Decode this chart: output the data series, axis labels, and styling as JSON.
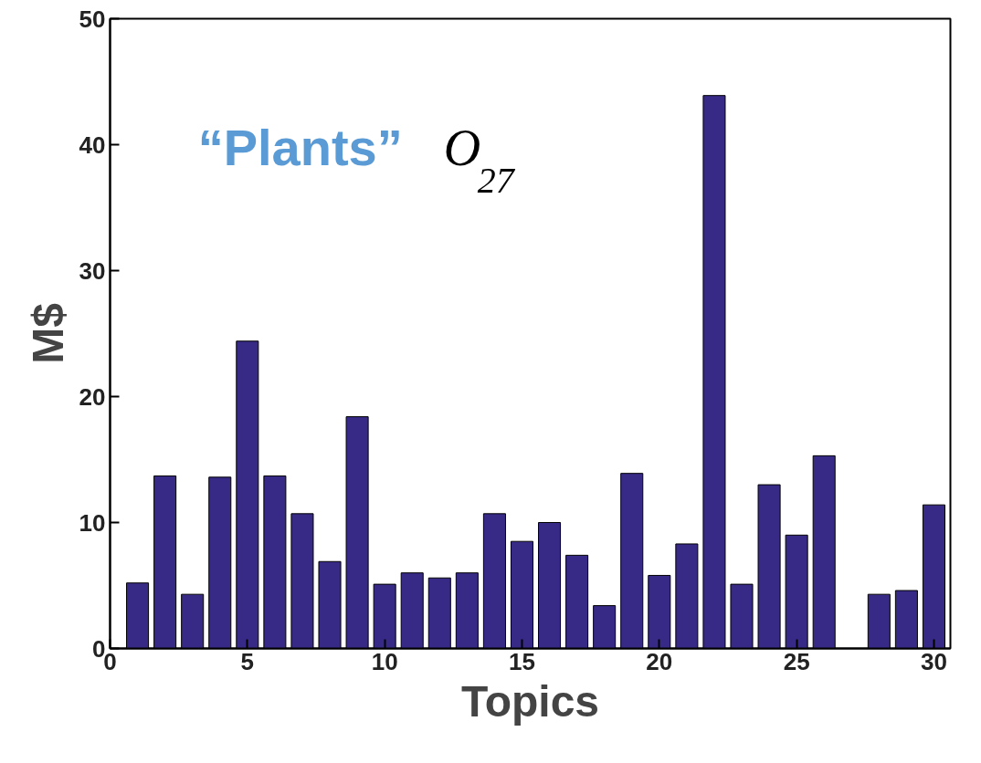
{
  "chart_data": {
    "type": "bar",
    "xlabel": "Topics",
    "ylabel": "M$",
    "annotations": [
      "“Plants”",
      "O$_{27}$"
    ],
    "x": [
      1,
      2,
      3,
      4,
      5,
      6,
      7,
      8,
      9,
      10,
      11,
      12,
      13,
      14,
      15,
      16,
      17,
      18,
      19,
      20,
      21,
      22,
      23,
      24,
      25,
      26,
      27,
      28,
      29,
      30
    ],
    "values": [
      5.2,
      13.7,
      4.3,
      13.6,
      24.4,
      13.7,
      10.7,
      6.9,
      18.4,
      5.1,
      6.0,
      5.6,
      6.0,
      10.7,
      8.5,
      10.0,
      7.4,
      3.4,
      13.9,
      5.8,
      8.3,
      43.9,
      5.1,
      13.0,
      9.0,
      15.3,
      0,
      4.3,
      4.6,
      11.4
    ],
    "color": "#372a86",
    "xlim": [
      0,
      30.6
    ],
    "ylim": [
      0,
      50
    ],
    "xticks": [
      0,
      5,
      10,
      15,
      20,
      25,
      30
    ],
    "yticks": [
      0,
      10,
      20,
      30,
      40,
      50
    ],
    "grid": false
  }
}
